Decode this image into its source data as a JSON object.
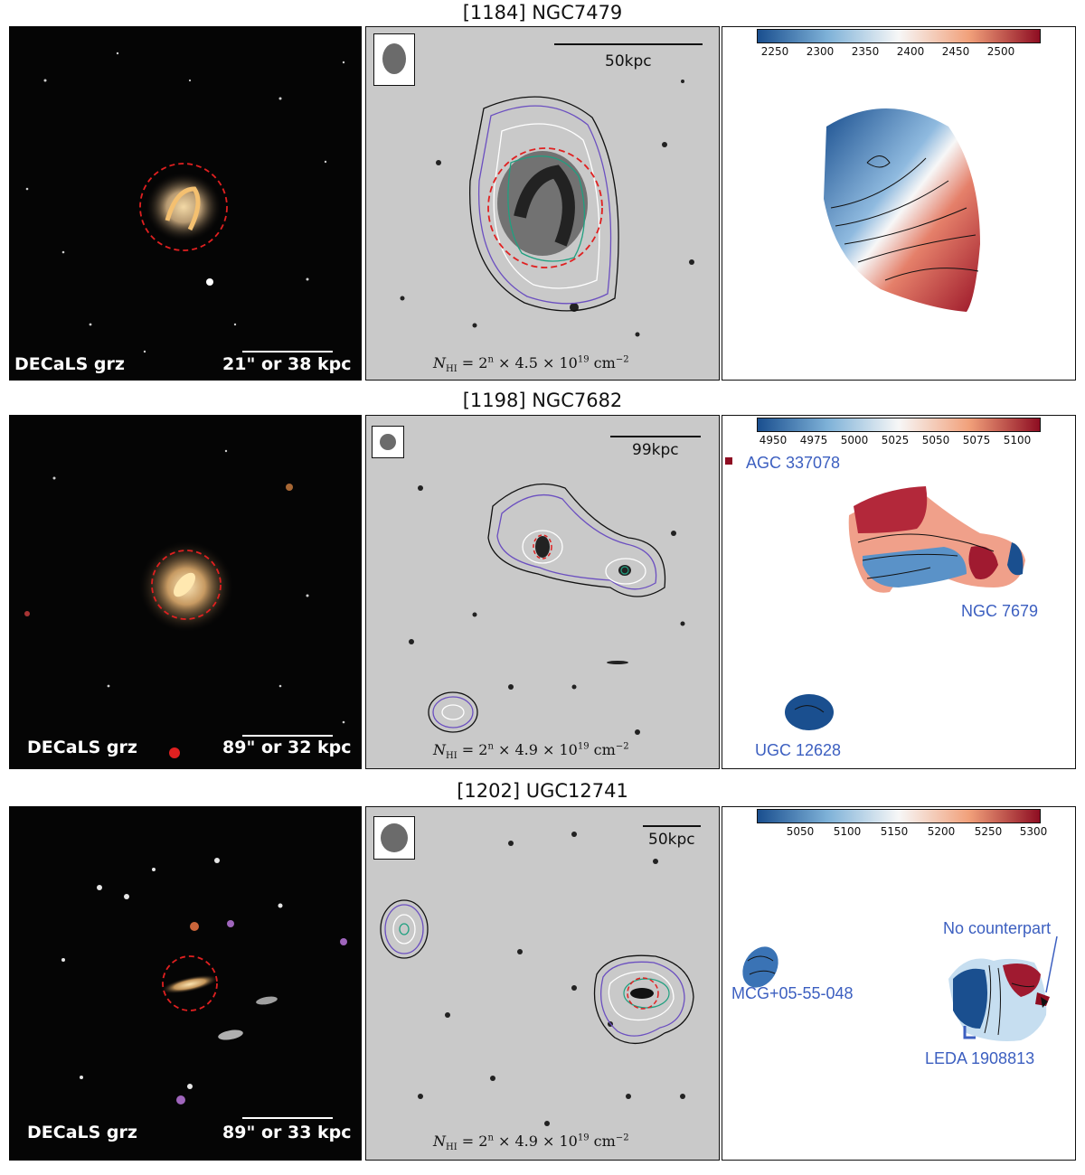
{
  "rows": [
    {
      "title": "[1184] NGC7479",
      "optical": {
        "label": "DECaLS grz",
        "scale_text": "21\" or 38 kpc"
      },
      "hi_map": {
        "scale_text": "50kpc",
        "nhi_text": "N",
        "nhi_sub": "HI",
        "nhi_rest": " = 2",
        "nhi_exp": "n",
        "nhi_tail": " × 4.5 × 10",
        "nhi_pow": "19",
        "nhi_unit": " cm",
        "nhi_unit_exp": "−2"
      },
      "velocity": {
        "ticks": [
          "2250",
          "2300",
          "2350",
          "2400",
          "2450",
          "2500"
        ],
        "labels": []
      }
    },
    {
      "title": "[1198] NGC7682",
      "optical": {
        "label": "DECaLS grz",
        "scale_text": "89\" or 32 kpc"
      },
      "hi_map": {
        "scale_text": "99kpc",
        "nhi_text": "N",
        "nhi_sub": "HI",
        "nhi_rest": " = 2",
        "nhi_exp": "n",
        "nhi_tail": " × 4.9 × 10",
        "nhi_pow": "19",
        "nhi_unit": " cm",
        "nhi_unit_exp": "−2"
      },
      "velocity": {
        "ticks": [
          "4950",
          "4975",
          "5000",
          "5025",
          "5050",
          "5075",
          "5100"
        ],
        "labels": [
          "AGC 337078",
          "NGC 7679",
          "UGC 12628"
        ]
      }
    },
    {
      "title": "[1202] UGC12741",
      "optical": {
        "label": "DECaLS grz",
        "scale_text": "89\" or 33 kpc"
      },
      "hi_map": {
        "scale_text": "50kpc",
        "nhi_text": "N",
        "nhi_sub": "HI",
        "nhi_rest": " = 2",
        "nhi_exp": "n",
        "nhi_tail": " × 4.9 × 10",
        "nhi_pow": "19",
        "nhi_unit": " cm",
        "nhi_unit_exp": "−2"
      },
      "velocity": {
        "ticks": [
          "5050",
          "5100",
          "5150",
          "5200",
          "5250",
          "5300"
        ],
        "labels": [
          "No counterpart",
          "MCG+05-55-048",
          "LEDA 1908813"
        ]
      }
    }
  ],
  "colors": {
    "colormap_low": "#1a4f8f",
    "colormap_mid": "#f7f7f7",
    "colormap_high": "#8e0d22",
    "label_blue": "#3c5fc0",
    "aperture_red": "#e02020"
  }
}
